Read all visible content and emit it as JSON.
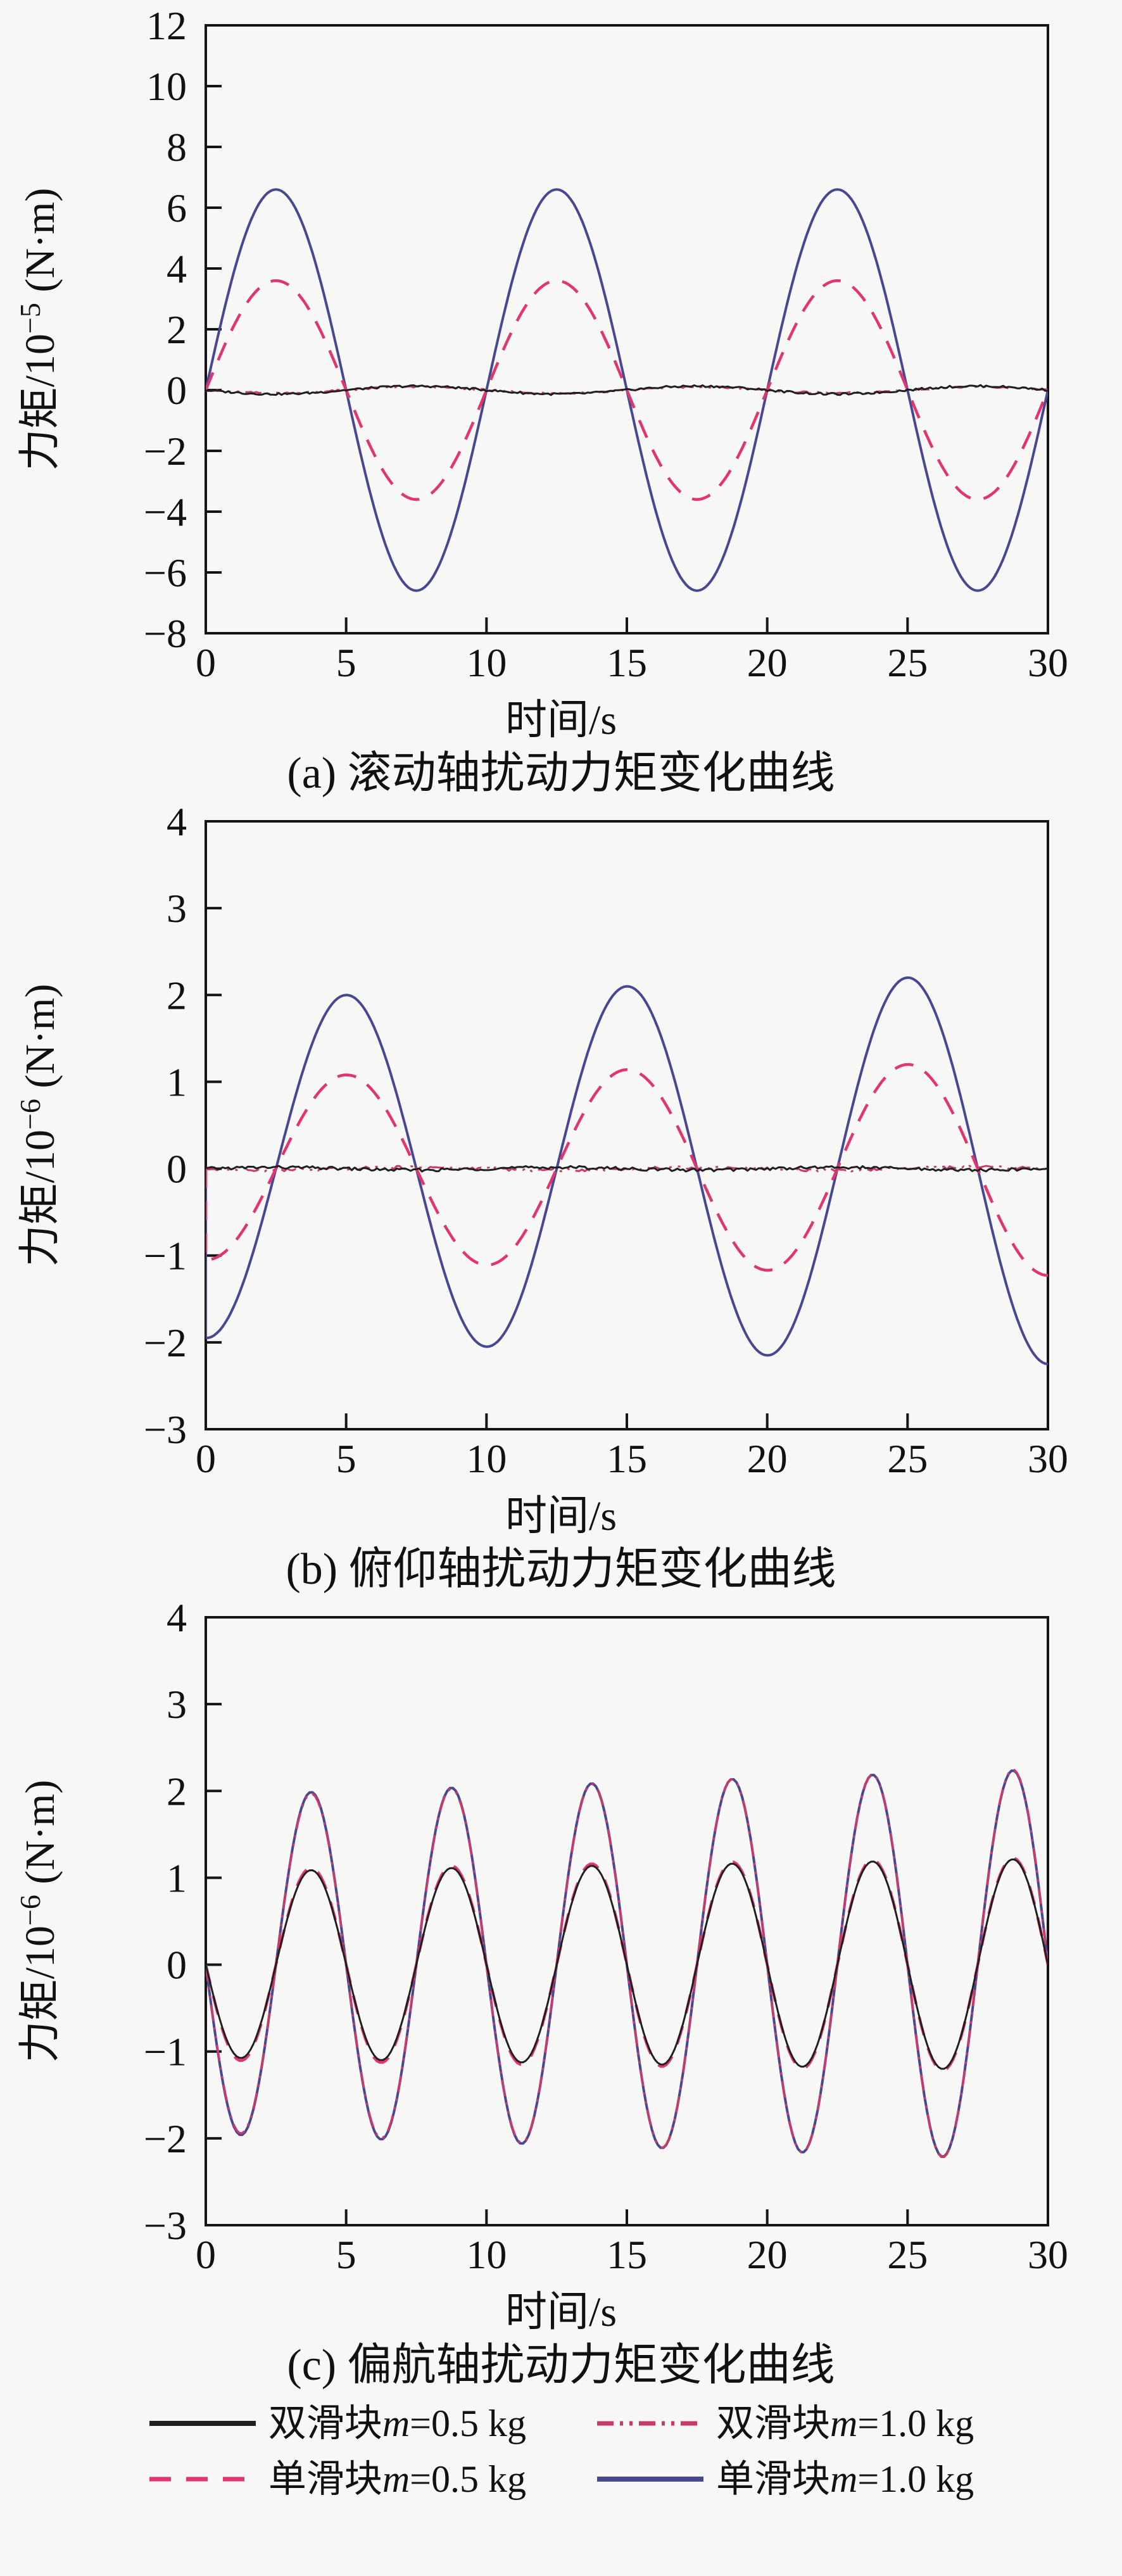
{
  "page": {
    "background": "#f7f7f5",
    "axis_color": "#151515"
  },
  "legend": {
    "items": [
      {
        "key": "dual05",
        "label_pre": "双滑块",
        "label_var": "m",
        "label_post": "=0.5 kg",
        "label": "双滑块m=0.5 kg",
        "style": "solid",
        "color": "#1f1f1f"
      },
      {
        "key": "dual10",
        "label_pre": "双滑块",
        "label_var": "m",
        "label_post": "=1.0 kg",
        "label": "双滑块m=1.0 kg",
        "style": "dashdot",
        "color": "#c93a6c"
      },
      {
        "key": "single05",
        "label_pre": "单滑块",
        "label_var": "m",
        "label_post": "=0.5 kg",
        "label": "单滑块m=0.5 kg",
        "style": "dashed",
        "color": "#e23570"
      },
      {
        "key": "single10",
        "label_pre": "单滑块",
        "label_var": "m",
        "label_post": "=1.0 kg",
        "label": "单滑块m=1.0 kg",
        "style": "solid",
        "color": "#474792"
      }
    ]
  },
  "chart_data": [
    {
      "type": "line",
      "caption": "(a) 滚动轴扰动力矩变化曲线",
      "xlabel": "时间/s",
      "ylabel": {
        "prefix": "力矩/10",
        "exp": "−5",
        "suffix": " (N·m)"
      },
      "xlim": [
        0,
        30
      ],
      "ylim": [
        -8,
        12
      ],
      "xticks": [
        0,
        5,
        10,
        15,
        20,
        25,
        30
      ],
      "yticks": [
        -8,
        -6,
        -4,
        -2,
        0,
        2,
        4,
        6,
        8,
        10,
        12
      ],
      "grid": false,
      "series": [
        {
          "legend": "single10",
          "label": "单滑块m=1.0 kg",
          "form": "sin",
          "sign": 1,
          "period_s": 10,
          "amp0": 6.6,
          "amp_growth": 0,
          "noise": 0,
          "width": 4,
          "peak_value": 6.6,
          "peak_times": [
            2.5,
            12.5,
            22.5
          ]
        },
        {
          "legend": "single05",
          "label": "单滑块m=0.5 kg",
          "form": "sin",
          "sign": 1,
          "period_s": 10,
          "amp0": 3.6,
          "amp_growth": 0,
          "noise": 0,
          "width": 4.5,
          "peak_value": 3.6,
          "peak_times": [
            2.5,
            12.5,
            22.5
          ]
        },
        {
          "legend": "dual10",
          "label": "双滑块m=1.0 kg",
          "form": "sin",
          "sign": -1,
          "period_s": 10,
          "amp0": 0.1,
          "amp_growth": 0,
          "noise": 0.03,
          "width": 3,
          "peak_value": 0.1
        },
        {
          "legend": "dual05",
          "label": "双滑块m=0.5 kg",
          "form": "sin",
          "sign": -1,
          "period_s": 10,
          "amp0": 0.13,
          "amp_growth": 0,
          "noise": 0.035,
          "width": 3,
          "peak_value": 0.15
        }
      ]
    },
    {
      "type": "line",
      "caption": "(b) 俯仰轴扰动力矩变化曲线",
      "xlabel": "时间/s",
      "ylabel": {
        "prefix": "力矩/10",
        "exp": "−6",
        "suffix": " (N·m)"
      },
      "xlim": [
        0,
        30
      ],
      "ylim": [
        -3,
        4
      ],
      "xticks": [
        0,
        5,
        10,
        15,
        20,
        25,
        30
      ],
      "yticks": [
        -3,
        -2,
        -1,
        0,
        1,
        2,
        3,
        4
      ],
      "grid": false,
      "series": [
        {
          "legend": "single10",
          "label": "单滑块m=1.0 kg",
          "form": "cos",
          "sign": -1,
          "period_s": 10,
          "amp0": 1.95,
          "amp_growth": 0.01,
          "noise": 0,
          "width": 4,
          "start_zero": true,
          "peaks": [
            [
              5,
              2.0
            ],
            [
              15,
              2.1
            ],
            [
              25,
              2.2
            ]
          ],
          "troughs": [
            [
              0,
              -2.0
            ],
            [
              10,
              -2.05
            ],
            [
              20,
              -2.15
            ],
            [
              30,
              -2.25
            ]
          ]
        },
        {
          "legend": "single05",
          "label": "单滑块m=0.5 kg",
          "form": "cos",
          "sign": -1,
          "period_s": 10,
          "amp0": 1.05,
          "amp_growth": 0.006,
          "noise": 0,
          "width": 4.5,
          "start_zero": true,
          "peaks": [
            [
              5,
              1.1
            ],
            [
              15,
              1.15
            ],
            [
              25,
              1.2
            ]
          ],
          "troughs": [
            [
              0,
              -1.0
            ],
            [
              10,
              -1.1
            ],
            [
              20,
              -1.2
            ],
            [
              30,
              -1.25
            ]
          ]
        },
        {
          "legend": "dual10",
          "label": "双滑块m=1.0 kg",
          "form": "sin",
          "sign": -1,
          "period_s": 10,
          "amp0": 0.015,
          "amp_growth": 0,
          "noise": 0.018,
          "width": 3,
          "peak_value": 0.03
        },
        {
          "legend": "dual05",
          "label": "双滑块m=0.5 kg",
          "form": "sin",
          "sign": 1,
          "period_s": 10,
          "amp0": 0.015,
          "amp_growth": 0,
          "noise": 0.018,
          "width": 3,
          "peak_value": 0.03
        }
      ]
    },
    {
      "type": "line",
      "caption": "(c) 偏航轴扰动力矩变化曲线",
      "xlabel": "时间/s",
      "ylabel": {
        "prefix": "力矩/10",
        "exp": "−6",
        "suffix": " (N·m)"
      },
      "xlim": [
        0,
        30
      ],
      "ylim": [
        -3,
        4
      ],
      "xticks": [
        0,
        5,
        10,
        15,
        20,
        25,
        30
      ],
      "yticks": [
        -3,
        -2,
        -1,
        0,
        1,
        2,
        3,
        4
      ],
      "grid": false,
      "series": [
        {
          "legend": "single10",
          "label": "单滑块m=1.0 kg",
          "form": "sin",
          "sign": -1,
          "period_s": 5,
          "amp0": 1.95,
          "amp_growth": 0.01,
          "noise": 0,
          "width": 4,
          "peaks": [
            [
              3.75,
              2.0
            ],
            [
              8.75,
              2.05
            ],
            [
              13.75,
              2.1
            ],
            [
              18.75,
              2.15
            ],
            [
              23.75,
              2.2
            ],
            [
              28.75,
              2.25
            ]
          ]
        },
        {
          "legend": "dual10",
          "label": "双滑块m=1.0 kg",
          "form": "sin",
          "sign": -1,
          "period_s": 5,
          "amp0": 1.93,
          "amp_growth": 0.011,
          "noise": 0,
          "width": 3.5,
          "peaks": [
            [
              3.75,
              2.0
            ],
            [
              28.75,
              2.25
            ]
          ]
        },
        {
          "legend": "single05",
          "label": "单滑块m=0.5 kg",
          "form": "sin",
          "sign": -1,
          "period_s": 5,
          "amp0": 1.1,
          "amp_growth": 0.0045,
          "noise": 0,
          "width": 4.5,
          "peaks": [
            [
              3.75,
              1.1
            ],
            [
              28.75,
              1.22
            ]
          ]
        },
        {
          "legend": "dual05",
          "label": "双滑块m=0.5 kg",
          "form": "sin",
          "sign": -1,
          "period_s": 5,
          "amp0": 1.07,
          "amp_growth": 0.005,
          "noise": 0,
          "width": 3,
          "peaks": [
            [
              3.75,
              1.1
            ],
            [
              28.75,
              1.2
            ]
          ]
        }
      ]
    }
  ]
}
